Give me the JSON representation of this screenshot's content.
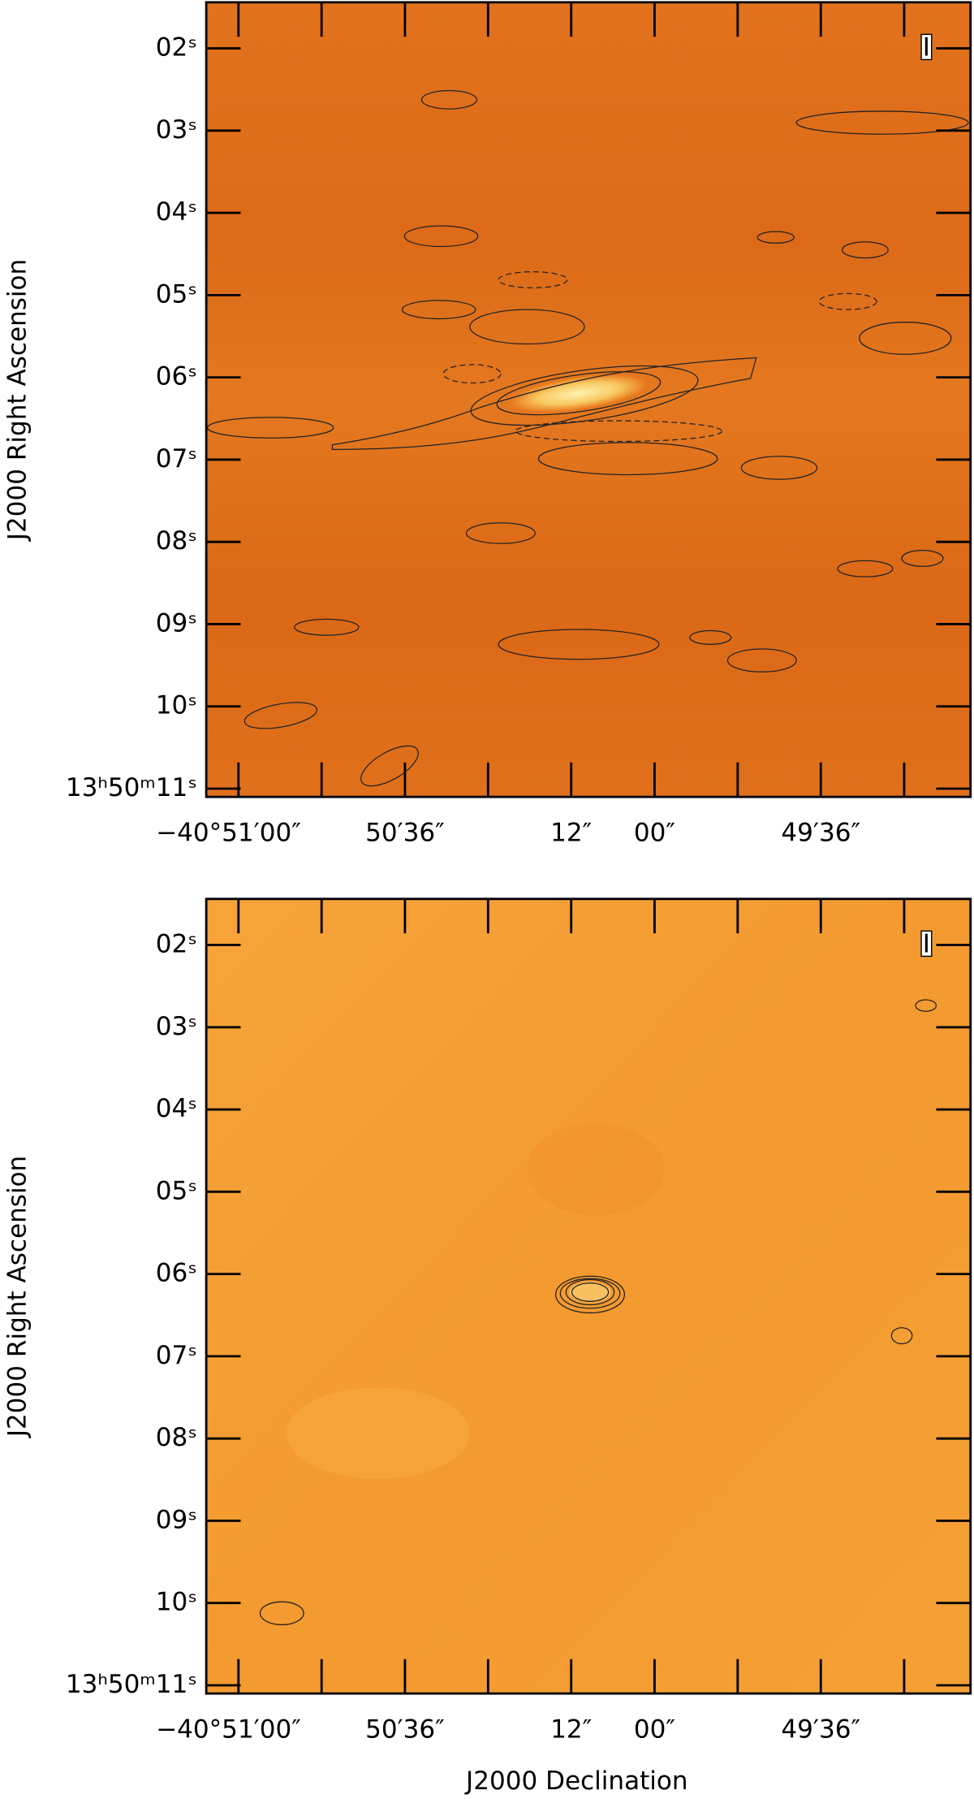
{
  "chart_data": [
    {
      "type": "image",
      "stokes": "I",
      "ylabel": "J2000 Right Ascension",
      "xlim": [
        -40.85129,
        -40.82067
      ],
      "ylim": [
        1.44,
        11.1
      ],
      "xticks": [
        {
          "value": -40.85,
          "label": "−40°51′00″"
        },
        {
          "value": -40.84333,
          "label": "50′36″"
        },
        {
          "value": -40.83667,
          "label": "12″"
        },
        {
          "value": -40.83333,
          "label": "00″"
        },
        {
          "value": -40.82667,
          "label": "49′36″"
        }
      ],
      "xminor": [
        -40.84667,
        -40.84,
        -40.83,
        -40.82333
      ],
      "yticks": [
        {
          "value": 2,
          "label": "02ˢ"
        },
        {
          "value": 3,
          "label": "03ˢ"
        },
        {
          "value": 4,
          "label": "04ˢ"
        },
        {
          "value": 5,
          "label": "05ˢ"
        },
        {
          "value": 6,
          "label": "06ˢ"
        },
        {
          "value": 7,
          "label": "07ˢ"
        },
        {
          "value": 8,
          "label": "08ˢ"
        },
        {
          "value": 9,
          "label": "09ˢ"
        },
        {
          "value": 10,
          "label": "10ˢ"
        },
        {
          "value": 11,
          "label": "13ʰ50ᵐ11ˢ"
        }
      ]
    },
    {
      "type": "image",
      "stokes": "I",
      "ylabel": "J2000 Right Ascension",
      "xlabel": "J2000 Declination",
      "xlim": [
        -40.85129,
        -40.82067
      ],
      "ylim": [
        1.44,
        11.1
      ],
      "xticks": [
        {
          "value": -40.85,
          "label": "−40°51′00″"
        },
        {
          "value": -40.84333,
          "label": "50′36″"
        },
        {
          "value": -40.83667,
          "label": "12″"
        },
        {
          "value": -40.83333,
          "label": "00″"
        },
        {
          "value": -40.82667,
          "label": "49′36″"
        }
      ],
      "xminor": [
        -40.84667,
        -40.84,
        -40.83,
        -40.82333
      ],
      "yticks": [
        {
          "value": 2,
          "label": "02ˢ"
        },
        {
          "value": 3,
          "label": "03ˢ"
        },
        {
          "value": 4,
          "label": "04ˢ"
        },
        {
          "value": 5,
          "label": "05ˢ"
        },
        {
          "value": 6,
          "label": "06ˢ"
        },
        {
          "value": 7,
          "label": "07ˢ"
        },
        {
          "value": 8,
          "label": "08ˢ"
        },
        {
          "value": 9,
          "label": "09ˢ"
        },
        {
          "value": 10,
          "label": "10ˢ"
        },
        {
          "value": 11,
          "label": "13ʰ50ᵐ11ˢ"
        }
      ]
    }
  ]
}
